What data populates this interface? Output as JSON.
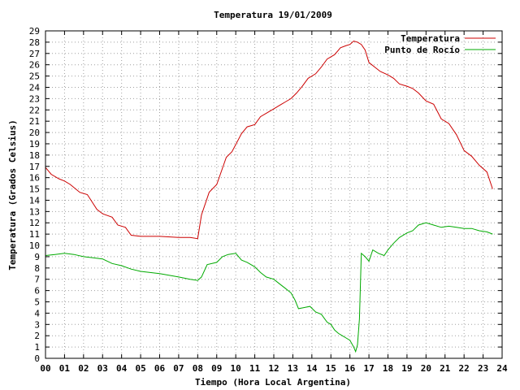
{
  "chart_data": {
    "type": "line",
    "title": "Temperatura 19/01/2009",
    "xlabel": "Tiempo (Hora Local Argentina)",
    "ylabel": "Temperatura (Grados Celsius)",
    "xlim": [
      0,
      24
    ],
    "ylim": [
      0,
      29
    ],
    "xticks": [
      "00",
      "01",
      "02",
      "03",
      "04",
      "05",
      "06",
      "07",
      "08",
      "09",
      "10",
      "11",
      "12",
      "13",
      "14",
      "15",
      "16",
      "17",
      "18",
      "19",
      "20",
      "21",
      "22",
      "23",
      "24"
    ],
    "yticks": [
      "0",
      "1",
      "2",
      "3",
      "4",
      "5",
      "6",
      "7",
      "8",
      "9",
      "10",
      "11",
      "12",
      "13",
      "14",
      "15",
      "16",
      "17",
      "18",
      "19",
      "20",
      "21",
      "22",
      "23",
      "24",
      "25",
      "26",
      "27",
      "28",
      "29"
    ],
    "grid": true,
    "legend_position": "top-right",
    "series": [
      {
        "name": "Temperatura",
        "color": "#cc0000",
        "x": [
          0,
          0.3,
          0.7,
          1.0,
          1.3,
          1.8,
          2.2,
          2.7,
          3.0,
          3.5,
          3.8,
          4.2,
          4.5,
          5.0,
          6.0,
          7.0,
          7.6,
          8.0,
          8.2,
          8.6,
          9.0,
          9.5,
          9.8,
          10.3,
          10.6,
          11.0,
          11.3,
          11.7,
          12.0,
          12.3,
          12.6,
          12.9,
          13.2,
          13.5,
          13.8,
          14.2,
          14.5,
          14.8,
          15.2,
          15.5,
          15.8,
          16.0,
          16.2,
          16.4,
          16.6,
          16.8,
          17.0,
          17.3,
          17.6,
          18.0,
          18.3,
          18.6,
          19.0,
          19.3,
          19.6,
          20.0,
          20.4,
          20.8,
          21.2,
          21.6,
          22.0,
          22.4,
          22.8,
          23.2,
          23.5
        ],
        "values": [
          16.9,
          16.3,
          15.9,
          15.7,
          15.4,
          14.7,
          14.5,
          13.2,
          12.8,
          12.5,
          11.8,
          11.6,
          10.9,
          10.8,
          10.8,
          10.7,
          10.7,
          10.6,
          12.7,
          14.7,
          15.4,
          17.8,
          18.3,
          19.9,
          20.5,
          20.7,
          21.4,
          21.8,
          22.1,
          22.4,
          22.7,
          23.0,
          23.5,
          24.1,
          24.8,
          25.2,
          25.8,
          26.5,
          26.9,
          27.5,
          27.7,
          27.8,
          28.1,
          28.0,
          27.8,
          27.3,
          26.2,
          25.8,
          25.4,
          25.1,
          24.8,
          24.3,
          24.1,
          23.9,
          23.5,
          22.8,
          22.5,
          21.2,
          20.8,
          19.8,
          18.4,
          17.9,
          17.1,
          16.5,
          15.0
        ]
      },
      {
        "name": "Punto de Rocío",
        "color": "#00aa00",
        "x": [
          0,
          0.5,
          1.0,
          1.5,
          2.0,
          2.5,
          3.0,
          3.5,
          4.0,
          4.5,
          5.0,
          6.0,
          7.0,
          7.6,
          8.0,
          8.2,
          8.5,
          9.0,
          9.3,
          9.6,
          10.0,
          10.3,
          10.6,
          11.0,
          11.3,
          11.6,
          12.0,
          12.3,
          12.6,
          12.9,
          13.1,
          13.3,
          13.6,
          13.9,
          14.2,
          14.5,
          14.8,
          15.0,
          15.2,
          15.4,
          15.6,
          15.8,
          16.0,
          16.2,
          16.3,
          16.4,
          16.5,
          16.6,
          16.8,
          17.0,
          17.2,
          17.5,
          17.8,
          18.0,
          18.3,
          18.6,
          19.0,
          19.3,
          19.6,
          20.0,
          20.4,
          20.8,
          21.2,
          21.6,
          22.0,
          22.4,
          22.8,
          23.2,
          23.5
        ],
        "values": [
          9.1,
          9.2,
          9.3,
          9.2,
          9.0,
          8.9,
          8.8,
          8.4,
          8.2,
          7.9,
          7.7,
          7.5,
          7.2,
          7.0,
          6.9,
          7.2,
          8.3,
          8.5,
          9.0,
          9.2,
          9.3,
          8.7,
          8.5,
          8.1,
          7.6,
          7.2,
          7.0,
          6.6,
          6.2,
          5.8,
          5.2,
          4.4,
          4.5,
          4.6,
          4.1,
          3.9,
          3.2,
          3.0,
          2.5,
          2.2,
          2.0,
          1.8,
          1.6,
          1.0,
          0.6,
          1.2,
          3.5,
          9.3,
          9.0,
          8.6,
          9.6,
          9.3,
          9.1,
          9.6,
          10.2,
          10.7,
          11.1,
          11.3,
          11.8,
          12.0,
          11.8,
          11.6,
          11.7,
          11.6,
          11.5,
          11.5,
          11.3,
          11.2,
          11.0
        ]
      }
    ]
  }
}
